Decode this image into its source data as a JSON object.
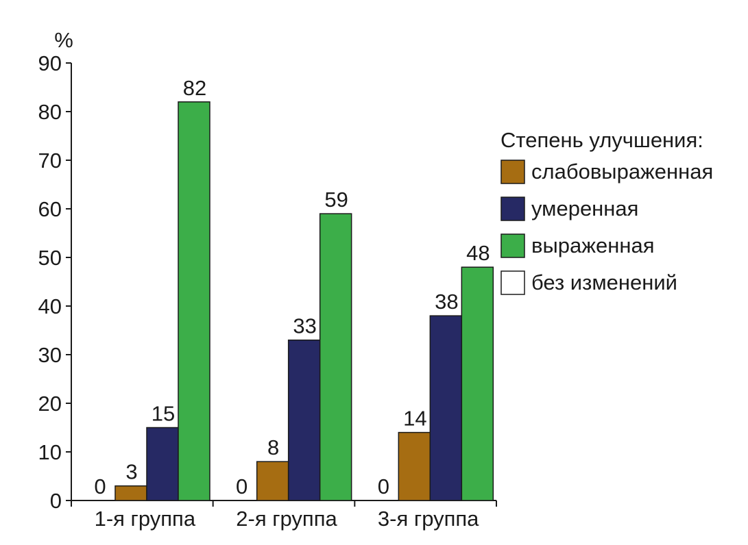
{
  "chart_data": {
    "type": "bar",
    "ylabel": "%",
    "ylim": [
      0,
      90
    ],
    "yticks": [
      0,
      10,
      20,
      30,
      40,
      50,
      60,
      70,
      80,
      90
    ],
    "categories": [
      "1-я группа",
      "2-я группа",
      "3-я группа"
    ],
    "legend_title": "Степень улучшения:",
    "legend_position": "right",
    "series": [
      {
        "name": "без изменений",
        "color": "#ffffff",
        "values": [
          0,
          0,
          0
        ],
        "labels": [
          "0",
          "0",
          "0"
        ]
      },
      {
        "name": "слабовыраженная",
        "color": "#a66d12",
        "values": [
          3,
          8,
          14
        ],
        "labels": [
          "3",
          "8",
          "14"
        ]
      },
      {
        "name": "умеренная",
        "color": "#262964",
        "values": [
          15,
          33,
          38
        ],
        "labels": [
          "15",
          "33",
          "38"
        ]
      },
      {
        "name": "выраженная",
        "color": "#3cae49",
        "values": [
          82,
          59,
          48
        ],
        "labels": [
          "82",
          "59",
          "48"
        ]
      }
    ],
    "legend_order": [
      "слабовыраженная",
      "умеренная",
      "выраженная",
      "без изменений"
    ]
  }
}
